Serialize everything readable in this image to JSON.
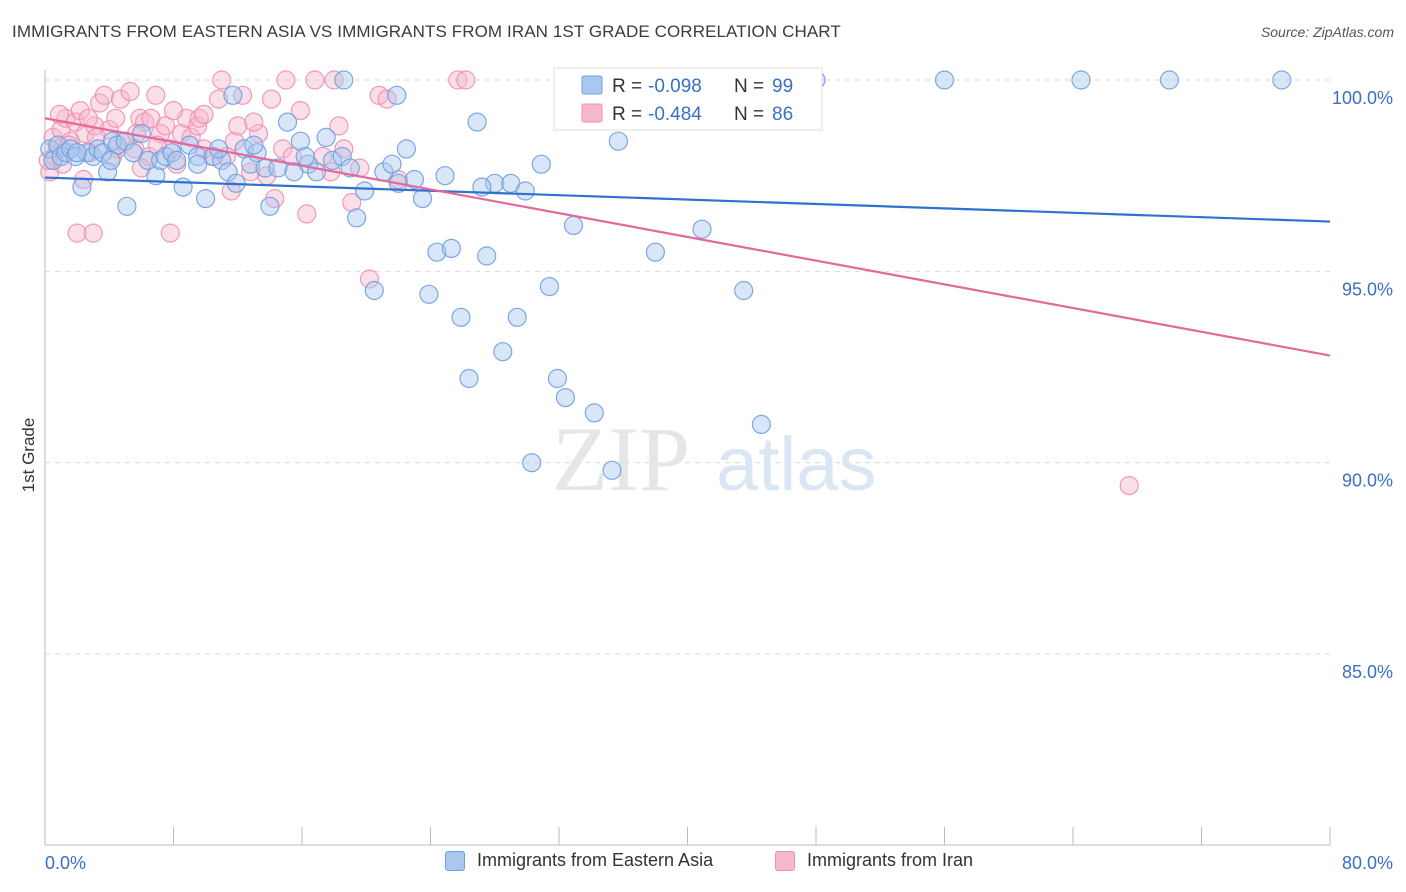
{
  "header": {
    "title": "IMMIGRANTS FROM EASTERN ASIA VS IMMIGRANTS FROM IRAN 1ST GRADE CORRELATION CHART",
    "source": "Source: ZipAtlas.com"
  },
  "watermark": {
    "zip": "ZIP",
    "atlas": "atlas"
  },
  "colors": {
    "blue_fill": "#a9c7ef",
    "blue_stroke": "#6f9fe0",
    "blue_line": "#2f72cf",
    "pink_fill": "#f6b8cb",
    "pink_stroke": "#ef8fb0",
    "pink_line": "#e4699a",
    "grid": "#d9d9d9",
    "axis_label": "#3a6fc4"
  },
  "legend": {
    "r_label": "R =",
    "n_label": "N =",
    "rows": [
      {
        "series": "blue",
        "r": "-0.098",
        "n": "99"
      },
      {
        "series": "pink",
        "r": "-0.484",
        "n": "86"
      }
    ]
  },
  "chart_data": {
    "type": "scatter",
    "title": "IMMIGRANTS FROM EASTERN ASIA VS IMMIGRANTS FROM IRAN 1ST GRADE CORRELATION CHART",
    "xlabel": "",
    "ylabel": "1st Grade",
    "xlim": [
      0,
      80
    ],
    "ylim": [
      80.5,
      100.8
    ],
    "x_tick_labels": {
      "left": "0.0%",
      "right": "80.0%"
    },
    "y_ticks": [
      {
        "value": 100,
        "label": "100.0%"
      },
      {
        "value": 95,
        "label": "95.0%"
      },
      {
        "value": 90,
        "label": "90.0%"
      },
      {
        "value": 85,
        "label": "85.0%"
      }
    ],
    "grid": true,
    "legend_position": "top-center",
    "series": [
      {
        "name": "Immigrants from Eastern Asia",
        "color": "blue",
        "trend": {
          "x0": 0,
          "y0": 97.45,
          "x1": 80,
          "y1": 96.3
        },
        "points": [
          [
            0.3,
            98.2
          ],
          [
            0.5,
            97.9
          ],
          [
            0.8,
            98.3
          ],
          [
            1.0,
            98.0
          ],
          [
            1.3,
            98.1
          ],
          [
            1.6,
            98.2
          ],
          [
            1.9,
            98.0
          ],
          [
            2.3,
            97.2
          ],
          [
            2.6,
            98.1
          ],
          [
            3.0,
            98.0
          ],
          [
            3.3,
            98.2
          ],
          [
            3.6,
            98.1
          ],
          [
            3.9,
            97.6
          ],
          [
            4.2,
            98.4
          ],
          [
            4.5,
            98.3
          ],
          [
            5.0,
            98.4
          ],
          [
            5.5,
            98.1
          ],
          [
            6.0,
            98.6
          ],
          [
            6.4,
            97.9
          ],
          [
            6.9,
            97.5
          ],
          [
            7.2,
            97.9
          ],
          [
            7.5,
            98.0
          ],
          [
            7.9,
            98.1
          ],
          [
            8.2,
            97.9
          ],
          [
            8.6,
            97.2
          ],
          [
            9.0,
            98.3
          ],
          [
            9.5,
            98.0
          ],
          [
            10.0,
            96.9
          ],
          [
            10.5,
            98.0
          ],
          [
            11.0,
            97.9
          ],
          [
            11.4,
            97.6
          ],
          [
            11.9,
            97.3
          ],
          [
            12.4,
            98.2
          ],
          [
            12.8,
            97.8
          ],
          [
            13.2,
            98.1
          ],
          [
            13.7,
            97.7
          ],
          [
            14.0,
            96.7
          ],
          [
            14.5,
            97.7
          ],
          [
            15.1,
            98.9
          ],
          [
            15.5,
            97.6
          ],
          [
            15.9,
            98.4
          ],
          [
            16.4,
            97.8
          ],
          [
            16.9,
            97.6
          ],
          [
            17.5,
            98.5
          ],
          [
            17.9,
            97.9
          ],
          [
            18.5,
            98.0
          ],
          [
            19.0,
            97.7
          ],
          [
            19.4,
            96.4
          ],
          [
            19.9,
            97.1
          ],
          [
            20.5,
            94.5
          ],
          [
            21.1,
            97.6
          ],
          [
            21.6,
            97.8
          ],
          [
            22.0,
            97.3
          ],
          [
            22.5,
            98.2
          ],
          [
            23.0,
            97.4
          ],
          [
            23.5,
            96.9
          ],
          [
            23.9,
            94.4
          ],
          [
            24.4,
            95.5
          ],
          [
            24.9,
            97.5
          ],
          [
            25.3,
            95.6
          ],
          [
            25.9,
            93.8
          ],
          [
            26.4,
            92.2
          ],
          [
            26.9,
            98.9
          ],
          [
            27.5,
            95.4
          ],
          [
            28.0,
            97.3
          ],
          [
            28.5,
            92.9
          ],
          [
            29.0,
            97.3
          ],
          [
            29.4,
            93.8
          ],
          [
            29.9,
            97.1
          ],
          [
            30.3,
            90.0
          ],
          [
            30.9,
            97.8
          ],
          [
            31.4,
            94.6
          ],
          [
            31.9,
            92.2
          ],
          [
            32.4,
            91.7
          ],
          [
            32.9,
            96.2
          ],
          [
            34.2,
            91.3
          ],
          [
            35.3,
            89.8
          ],
          [
            35.7,
            98.4
          ],
          [
            38.0,
            95.5
          ],
          [
            38.8,
            99.5
          ],
          [
            40.9,
            96.1
          ],
          [
            43.5,
            94.5
          ],
          [
            44.6,
            91.0
          ],
          [
            48.0,
            100.0
          ],
          [
            56.0,
            100.0
          ],
          [
            64.5,
            100.0
          ],
          [
            70.0,
            100.0
          ],
          [
            77.0,
            100.0
          ],
          [
            21.9,
            99.6
          ],
          [
            18.6,
            100.0
          ],
          [
            9.5,
            97.8
          ],
          [
            10.8,
            98.2
          ],
          [
            16.2,
            98.0
          ],
          [
            11.7,
            99.6
          ],
          [
            13.0,
            98.3
          ],
          [
            2.0,
            98.1
          ],
          [
            4.1,
            97.9
          ],
          [
            5.1,
            96.7
          ],
          [
            27.2,
            97.2
          ]
        ]
      },
      {
        "name": "Immigrants from Iran",
        "color": "pink",
        "trend": {
          "x0": 0,
          "y0": 99.0,
          "x1": 80,
          "y1": 92.8
        },
        "points": [
          [
            0.3,
            97.6
          ],
          [
            0.5,
            98.5
          ],
          [
            0.8,
            98.2
          ],
          [
            1.0,
            98.7
          ],
          [
            1.3,
            99.0
          ],
          [
            1.6,
            98.4
          ],
          [
            1.9,
            98.9
          ],
          [
            2.2,
            99.2
          ],
          [
            2.5,
            98.6
          ],
          [
            2.8,
            98.1
          ],
          [
            3.1,
            98.8
          ],
          [
            3.4,
            99.4
          ],
          [
            3.7,
            99.6
          ],
          [
            4.0,
            98.7
          ],
          [
            4.4,
            99.0
          ],
          [
            4.7,
            99.5
          ],
          [
            5.0,
            98.4
          ],
          [
            5.3,
            99.7
          ],
          [
            5.6,
            98.2
          ],
          [
            5.9,
            99.0
          ],
          [
            6.2,
            98.9
          ],
          [
            6.6,
            99.0
          ],
          [
            6.9,
            99.6
          ],
          [
            7.2,
            98.6
          ],
          [
            7.5,
            98.8
          ],
          [
            7.8,
            98.2
          ],
          [
            8.2,
            97.8
          ],
          [
            8.5,
            98.6
          ],
          [
            8.8,
            99.0
          ],
          [
            9.1,
            98.5
          ],
          [
            9.5,
            98.8
          ],
          [
            9.9,
            98.2
          ],
          [
            10.4,
            98.0
          ],
          [
            10.8,
            99.5
          ],
          [
            11.3,
            98.0
          ],
          [
            11.8,
            98.4
          ],
          [
            12.3,
            99.6
          ],
          [
            12.8,
            97.6
          ],
          [
            13.3,
            98.6
          ],
          [
            13.8,
            97.5
          ],
          [
            14.3,
            96.9
          ],
          [
            14.8,
            98.2
          ],
          [
            15.4,
            98.0
          ],
          [
            15.9,
            99.2
          ],
          [
            16.3,
            96.5
          ],
          [
            16.8,
            100.0
          ],
          [
            17.3,
            98.0
          ],
          [
            18.0,
            100.0
          ],
          [
            18.6,
            98.2
          ],
          [
            19.1,
            96.8
          ],
          [
            19.6,
            97.7
          ],
          [
            20.2,
            94.8
          ],
          [
            20.8,
            99.6
          ],
          [
            21.3,
            99.5
          ],
          [
            22.0,
            97.4
          ],
          [
            2.0,
            96.0
          ],
          [
            3.0,
            96.0
          ],
          [
            7.8,
            96.0
          ],
          [
            0.6,
            98.0
          ],
          [
            1.1,
            97.8
          ],
          [
            1.5,
            98.3
          ],
          [
            2.4,
            97.4
          ],
          [
            3.2,
            98.5
          ],
          [
            4.5,
            98.2
          ],
          [
            5.7,
            98.6
          ],
          [
            6.5,
            98.0
          ],
          [
            8.0,
            99.2
          ],
          [
            9.6,
            99.0
          ],
          [
            11.0,
            100.0
          ],
          [
            12.0,
            98.8
          ],
          [
            14.1,
            99.5
          ],
          [
            15.0,
            100.0
          ],
          [
            17.8,
            97.6
          ],
          [
            18.3,
            98.8
          ],
          [
            25.7,
            100.0
          ],
          [
            26.2,
            100.0
          ],
          [
            67.5,
            89.4
          ],
          [
            0.2,
            97.9
          ],
          [
            0.9,
            99.1
          ],
          [
            2.7,
            99.0
          ],
          [
            4.2,
            98.0
          ],
          [
            6.0,
            97.7
          ],
          [
            7.0,
            98.3
          ],
          [
            9.9,
            99.1
          ],
          [
            11.6,
            97.1
          ],
          [
            13.0,
            98.9
          ]
        ]
      }
    ]
  },
  "bottom_legend": [
    {
      "label": "Immigrants from Eastern Asia",
      "series": "blue"
    },
    {
      "label": "Immigrants from Iran",
      "series": "pink"
    }
  ]
}
